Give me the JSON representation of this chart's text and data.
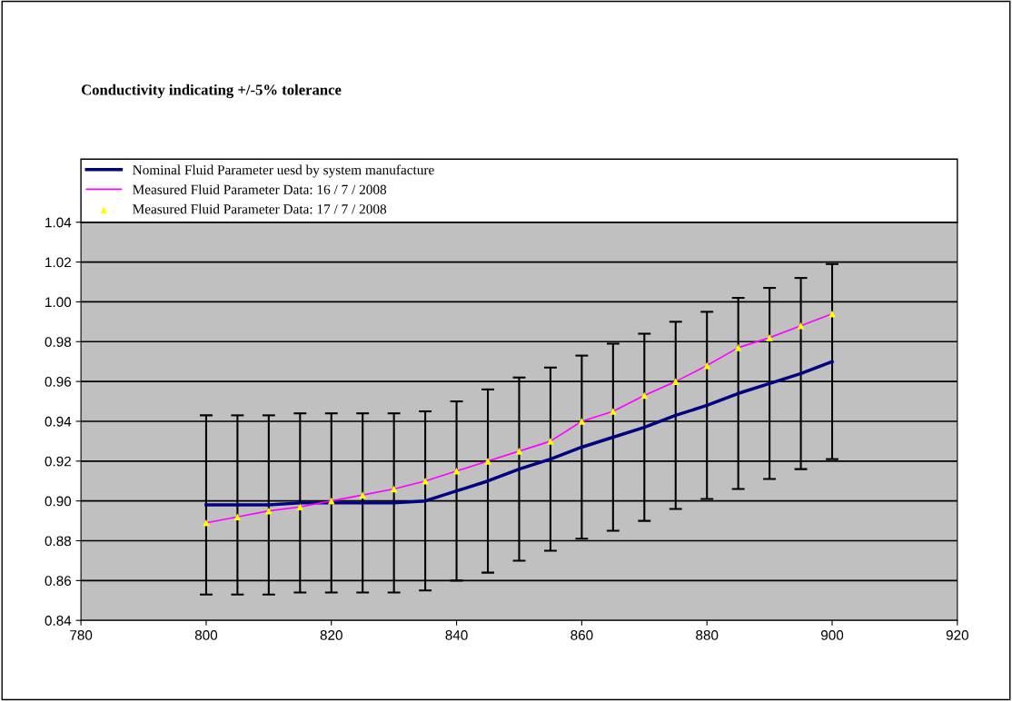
{
  "chart_data": {
    "type": "line",
    "title": "Conductivity indicating +/-5% tolerance",
    "x": [
      800,
      805,
      810,
      815,
      820,
      825,
      830,
      835,
      840,
      845,
      850,
      855,
      860,
      865,
      870,
      875,
      880,
      885,
      890,
      895,
      900
    ],
    "series": [
      {
        "name": "Nominal Fluid Parameter uesd by system manufacture",
        "color": "#000080",
        "marker": "none",
        "values": [
          0.898,
          0.898,
          0.898,
          0.899,
          0.899,
          0.899,
          0.899,
          0.9,
          0.905,
          0.91,
          0.916,
          0.921,
          0.927,
          0.932,
          0.937,
          0.943,
          0.948,
          0.954,
          0.959,
          0.964,
          0.97
        ],
        "errors": [
          0.045,
          0.045,
          0.045,
          0.045,
          0.045,
          0.045,
          0.045,
          0.045,
          0.045,
          0.046,
          0.046,
          0.046,
          0.046,
          0.047,
          0.047,
          0.047,
          0.047,
          0.048,
          0.048,
          0.048,
          0.049
        ]
      },
      {
        "name": "Measured Fluid Parameter Data: 16 / 7 / 2008",
        "color": "#ff00ff",
        "marker": "none",
        "values": [
          0.889,
          0.892,
          0.895,
          0.897,
          0.9,
          0.903,
          0.906,
          0.91,
          0.915,
          0.92,
          0.925,
          0.93,
          0.94,
          0.945,
          0.953,
          0.96,
          0.968,
          0.977,
          0.982,
          0.988,
          0.994
        ]
      },
      {
        "name": "Measured Fluid Parameter Data: 17 / 7 / 2008",
        "type": "scatter",
        "color": "#ffff00",
        "marker": "triangle",
        "values": [
          0.889,
          0.892,
          0.895,
          0.897,
          0.9,
          0.903,
          0.906,
          0.91,
          0.915,
          0.92,
          0.925,
          0.93,
          0.94,
          0.945,
          0.953,
          0.96,
          0.968,
          0.977,
          0.982,
          0.988,
          0.994
        ]
      }
    ],
    "xlim": [
      780,
      920
    ],
    "xticks": [
      780,
      800,
      820,
      840,
      860,
      880,
      900,
      920
    ],
    "ylim": [
      0.84,
      1.04
    ],
    "yticks": [
      {
        "value": 0.84,
        "label": "0.84"
      },
      {
        "value": 0.86,
        "label": "0.86"
      },
      {
        "value": 0.88,
        "label": "0.88"
      },
      {
        "value": 0.9,
        "label": "0.90"
      },
      {
        "value": 0.92,
        "label": "0.92"
      },
      {
        "value": 0.94,
        "label": "0.94"
      },
      {
        "value": 0.96,
        "label": "0.96"
      },
      {
        "value": 0.98,
        "label": "0.98"
      },
      {
        "value": 1.0,
        "label": "1.00"
      },
      {
        "value": 1.02,
        "label": "1.02"
      },
      {
        "value": 1.04,
        "label": "1.04"
      }
    ],
    "grid": "y",
    "legend": "top"
  }
}
